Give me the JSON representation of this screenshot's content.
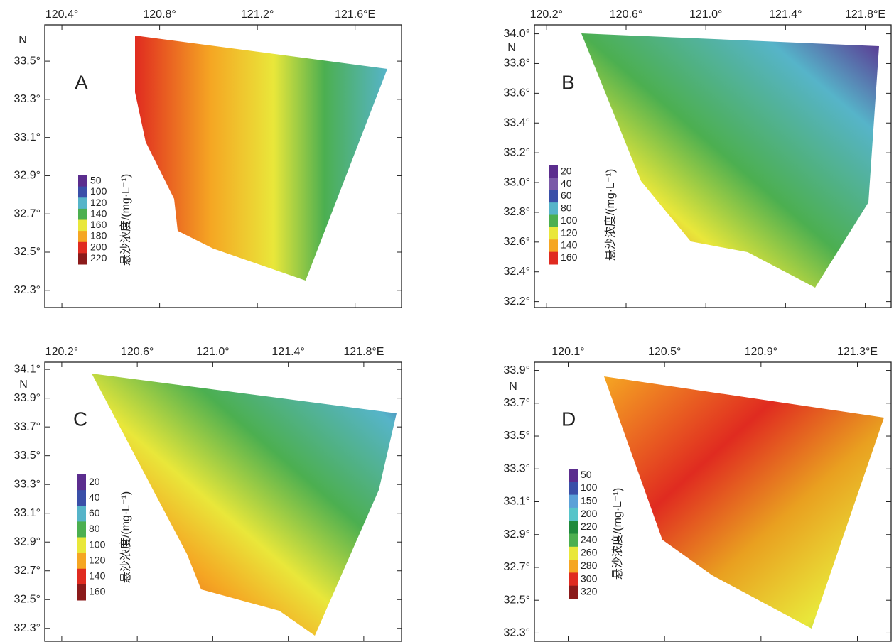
{
  "panels": [
    {
      "label": "A",
      "north": "N",
      "xlim": [
        120.33,
        121.79
      ],
      "ylim": [
        32.21,
        33.69
      ],
      "xticks": [
        {
          "value": 120.4,
          "label": "120.4°"
        },
        {
          "value": 120.8,
          "label": "120.8°"
        },
        {
          "value": 121.2,
          "label": "121.2°"
        },
        {
          "value": 121.6,
          "label": "121.6°E"
        }
      ],
      "yticks": [
        {
          "value": 33.5,
          "label": "33.5°"
        },
        {
          "value": 33.3,
          "label": "33.3°"
        },
        {
          "value": 33.1,
          "label": "33.1°"
        },
        {
          "value": 32.9,
          "label": "32.9°"
        },
        {
          "value": 32.7,
          "label": "32.7°"
        },
        {
          "value": 32.5,
          "label": "32.5°"
        },
        {
          "value": 32.3,
          "label": "32.3°"
        }
      ],
      "legend": {
        "title": "悬沙浓度/(mg·L⁻¹)",
        "levels": [
          50,
          100,
          120,
          140,
          160,
          180,
          200,
          220
        ],
        "colors": [
          "#5b2d8e",
          "#3a4fa8",
          "#56b4c9",
          "#4caf50",
          "#e9e73a",
          "#f5a623",
          "#e02b20",
          "#8b1a1a"
        ]
      }
    },
    {
      "label": "B",
      "north": "N",
      "xlim": [
        120.14,
        121.93
      ],
      "ylim": [
        32.16,
        34.06
      ],
      "xticks": [
        {
          "value": 120.2,
          "label": "120.2°"
        },
        {
          "value": 120.6,
          "label": "120.6°"
        },
        {
          "value": 121.0,
          "label": "121.0°"
        },
        {
          "value": 121.4,
          "label": "121.4°"
        },
        {
          "value": 121.8,
          "label": "121.8°E"
        }
      ],
      "yticks": [
        {
          "value": 34.0,
          "label": "34.0°"
        },
        {
          "value": 33.8,
          "label": "33.8°"
        },
        {
          "value": 33.6,
          "label": "33.6°"
        },
        {
          "value": 33.4,
          "label": "33.4°"
        },
        {
          "value": 33.2,
          "label": "33.2°"
        },
        {
          "value": 33.0,
          "label": "33.0°"
        },
        {
          "value": 32.8,
          "label": "32.8°"
        },
        {
          "value": 32.6,
          "label": "32.6°"
        },
        {
          "value": 32.4,
          "label": "32.4°"
        },
        {
          "value": 32.2,
          "label": "32.2°"
        }
      ],
      "legend": {
        "title": "悬沙浓度/(mg·L⁻¹)",
        "levels": [
          20,
          40,
          60,
          80,
          100,
          120,
          140,
          160
        ],
        "colors": [
          "#5b2d8e",
          "#7a5aa8",
          "#3a4fa8",
          "#56b4c9",
          "#4caf50",
          "#e9e73a",
          "#f5a623",
          "#e02b20"
        ]
      }
    },
    {
      "label": "C",
      "north": "N",
      "xlim": [
        120.11,
        122.0
      ],
      "ylim": [
        32.21,
        34.15
      ],
      "xticks": [
        {
          "value": 120.2,
          "label": "120.2°"
        },
        {
          "value": 120.6,
          "label": "120.6°"
        },
        {
          "value": 121.0,
          "label": "121.0°"
        },
        {
          "value": 121.4,
          "label": "121.4°"
        },
        {
          "value": 121.8,
          "label": "121.8°E"
        }
      ],
      "yticks": [
        {
          "value": 34.1,
          "label": "34.1°"
        },
        {
          "value": 33.9,
          "label": "33.9°"
        },
        {
          "value": 33.7,
          "label": "33.7°"
        },
        {
          "value": 33.5,
          "label": "33.5°"
        },
        {
          "value": 33.3,
          "label": "33.3°"
        },
        {
          "value": 33.1,
          "label": "33.1°"
        },
        {
          "value": 32.9,
          "label": "32.9°"
        },
        {
          "value": 32.7,
          "label": "32.7°"
        },
        {
          "value": 32.5,
          "label": "32.5°"
        },
        {
          "value": 32.3,
          "label": "32.3°"
        }
      ],
      "legend": {
        "title": "悬沙浓度/(mg·L⁻¹)",
        "levels": [
          20,
          40,
          60,
          80,
          100,
          120,
          140,
          160
        ],
        "colors": [
          "#5b2d8e",
          "#3a4fa8",
          "#56b4c9",
          "#4caf50",
          "#e9e73a",
          "#f5a623",
          "#e02b20",
          "#8b1a1a"
        ]
      }
    },
    {
      "label": "D",
      "north": "N",
      "xlim": [
        119.96,
        121.44
      ],
      "ylim": [
        32.25,
        33.95
      ],
      "xticks": [
        {
          "value": 120.1,
          "label": "120.1°"
        },
        {
          "value": 120.5,
          "label": "120.5°"
        },
        {
          "value": 120.9,
          "label": "120.9°"
        },
        {
          "value": 121.3,
          "label": "121.3°E"
        }
      ],
      "yticks": [
        {
          "value": 33.9,
          "label": "33.9°"
        },
        {
          "value": 33.7,
          "label": "33.7°"
        },
        {
          "value": 33.5,
          "label": "33.5°"
        },
        {
          "value": 33.3,
          "label": "33.3°"
        },
        {
          "value": 33.1,
          "label": "33.1°"
        },
        {
          "value": 32.9,
          "label": "32.9°"
        },
        {
          "value": 32.7,
          "label": "32.7°"
        },
        {
          "value": 32.5,
          "label": "32.5°"
        },
        {
          "value": 32.3,
          "label": "32.3°"
        }
      ],
      "legend": {
        "title": "悬沙浓度/(mg·L⁻¹)",
        "levels": [
          50,
          100,
          150,
          200,
          220,
          240,
          260,
          280,
          300,
          320
        ],
        "colors": [
          "#5b2d8e",
          "#3a4fa8",
          "#5aa0d8",
          "#56c4c9",
          "#1e8a3c",
          "#4caf50",
          "#e9e73a",
          "#f5a623",
          "#e02b20",
          "#8b1a1a"
        ]
      }
    }
  ]
}
